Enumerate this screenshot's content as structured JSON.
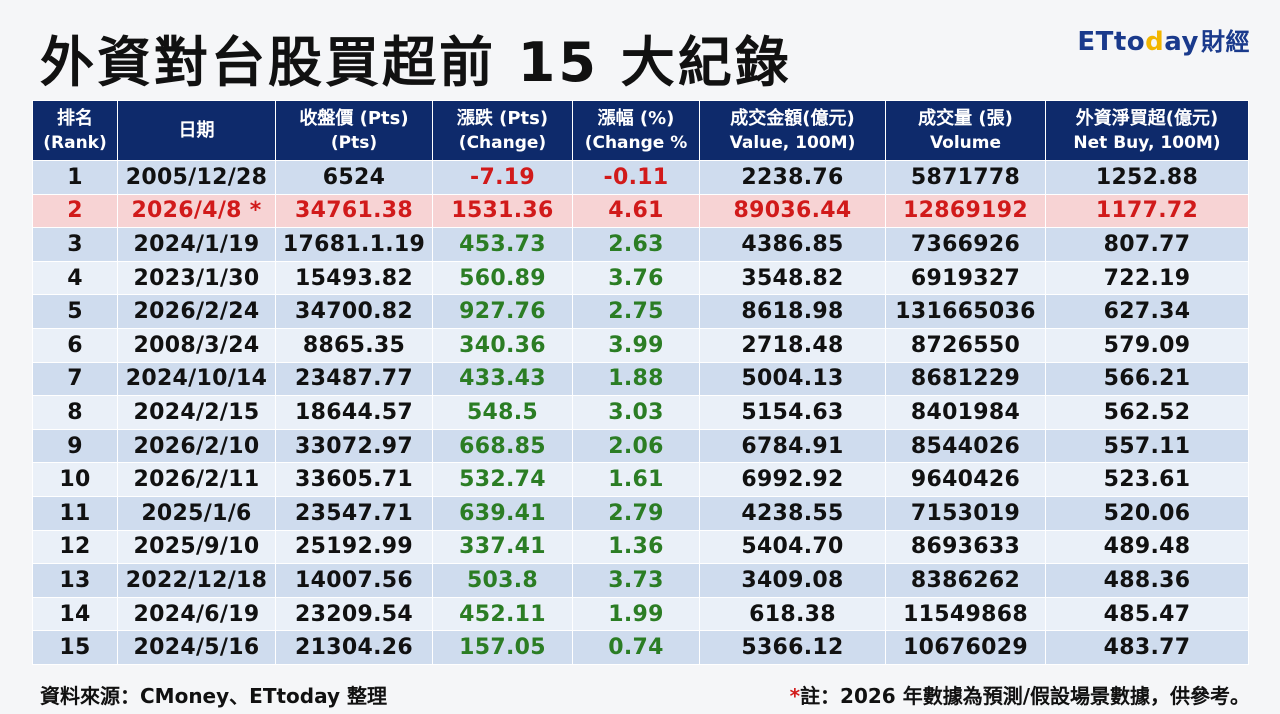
{
  "title": "外資對台股買超前 15 大紀錄",
  "logo": {
    "et": "ET",
    "to": "to",
    "d": "d",
    "ay": "ay",
    "fin": "財經"
  },
  "headers": [
    {
      "main": "排名",
      "sub": "(Rank)"
    },
    {
      "main": "日期",
      "sub": ""
    },
    {
      "main": "收盤價 (Pts)",
      "sub": "(Pts)"
    },
    {
      "main": "漲跌 (Pts)",
      "sub": "(Change)"
    },
    {
      "main": "漲幅 (%)",
      "sub": "(Change %"
    },
    {
      "main": "成交金額(億元)",
      "sub": "Value, 100M)"
    },
    {
      "main": "成交量 (張)",
      "sub": "Volume"
    },
    {
      "main": "外資淨買超(億元)",
      "sub": "Net Buy, 100M)"
    }
  ],
  "rows": [
    {
      "rank": "1",
      "date": "2005/12/28",
      "close": "6524",
      "change": "-7.19",
      "pct": "-0.11",
      "value": "2238.76",
      "volume": "5871778",
      "netbuy": "1252.88",
      "dir": "neg"
    },
    {
      "rank": "2",
      "date": "2026/4/8 *",
      "close": "34761.38",
      "change": "1531.36",
      "pct": "4.61",
      "value": "89036.44",
      "volume": "12869192",
      "netbuy": "1177.72",
      "dir": "hl"
    },
    {
      "rank": "3",
      "date": "2024/1/19",
      "close": "17681.1.19",
      "change": "453.73",
      "pct": "2.63",
      "value": "4386.85",
      "volume": "7366926",
      "netbuy": "807.77",
      "dir": "pos"
    },
    {
      "rank": "4",
      "date": "2023/1/30",
      "close": "15493.82",
      "change": "560.89",
      "pct": "3.76",
      "value": "3548.82",
      "volume": "6919327",
      "netbuy": "722.19",
      "dir": "pos"
    },
    {
      "rank": "5",
      "date": "2026/2/24",
      "close": "34700.82",
      "change": "927.76",
      "pct": "2.75",
      "value": "8618.98",
      "volume": "131665036",
      "netbuy": "627.34",
      "dir": "pos"
    },
    {
      "rank": "6",
      "date": "2008/3/24",
      "close": "8865.35",
      "change": "340.36",
      "pct": "3.99",
      "value": "2718.48",
      "volume": "8726550",
      "netbuy": "579.09",
      "dir": "pos"
    },
    {
      "rank": "7",
      "date": "2024/10/14",
      "close": "23487.77",
      "change": "433.43",
      "pct": "1.88",
      "value": "5004.13",
      "volume": "8681229",
      "netbuy": "566.21",
      "dir": "pos"
    },
    {
      "rank": "8",
      "date": "2024/2/15",
      "close": "18644.57",
      "change": "548.5",
      "pct": "3.03",
      "value": "5154.63",
      "volume": "8401984",
      "netbuy": "562.52",
      "dir": "pos"
    },
    {
      "rank": "9",
      "date": "2026/2/10",
      "close": "33072.97",
      "change": "668.85",
      "pct": "2.06",
      "value": "6784.91",
      "volume": "8544026",
      "netbuy": "557.11",
      "dir": "pos"
    },
    {
      "rank": "10",
      "date": "2026/2/11",
      "close": "33605.71",
      "change": "532.74",
      "pct": "1.61",
      "value": "6992.92",
      "volume": "9640426",
      "netbuy": "523.61",
      "dir": "pos"
    },
    {
      "rank": "11",
      "date": "2025/1/6",
      "close": "23547.71",
      "change": "639.41",
      "pct": "2.79",
      "value": "4238.55",
      "volume": "7153019",
      "netbuy": "520.06",
      "dir": "pos"
    },
    {
      "rank": "12",
      "date": "2025/9/10",
      "close": "25192.99",
      "change": "337.41",
      "pct": "1.36",
      "value": "5404.70",
      "volume": "8693633",
      "netbuy": "489.48",
      "dir": "pos"
    },
    {
      "rank": "13",
      "date": "2022/12/18",
      "close": "14007.56",
      "change": "503.8",
      "pct": "3.73",
      "value": "3409.08",
      "volume": "8386262",
      "netbuy": "488.36",
      "dir": "pos"
    },
    {
      "rank": "14",
      "date": "2024/6/19",
      "close": "23209.54",
      "change": "452.11",
      "pct": "1.99",
      "value": "618.38",
      "volume": "11549868",
      "netbuy": "485.47",
      "dir": "pos"
    },
    {
      "rank": "15",
      "date": "2024/5/16",
      "close": "21304.26",
      "change": "157.05",
      "pct": "0.74",
      "value": "5366.12",
      "volume": "10676029",
      "netbuy": "483.77",
      "dir": "pos"
    }
  ],
  "footer": {
    "source": "資料來源：CMoney、ETtoday 整理",
    "note_star": "*",
    "note": "註：2026 年數據為預測/假設場景數據，供參考。"
  },
  "colors": {
    "header_bg": "#0e2a6b",
    "row_dark": "#cfdcee",
    "row_light": "#eaf0f8",
    "highlight_bg": "#f7d3d4",
    "negative": "#d11a1a",
    "positive": "#2b7d24"
  }
}
